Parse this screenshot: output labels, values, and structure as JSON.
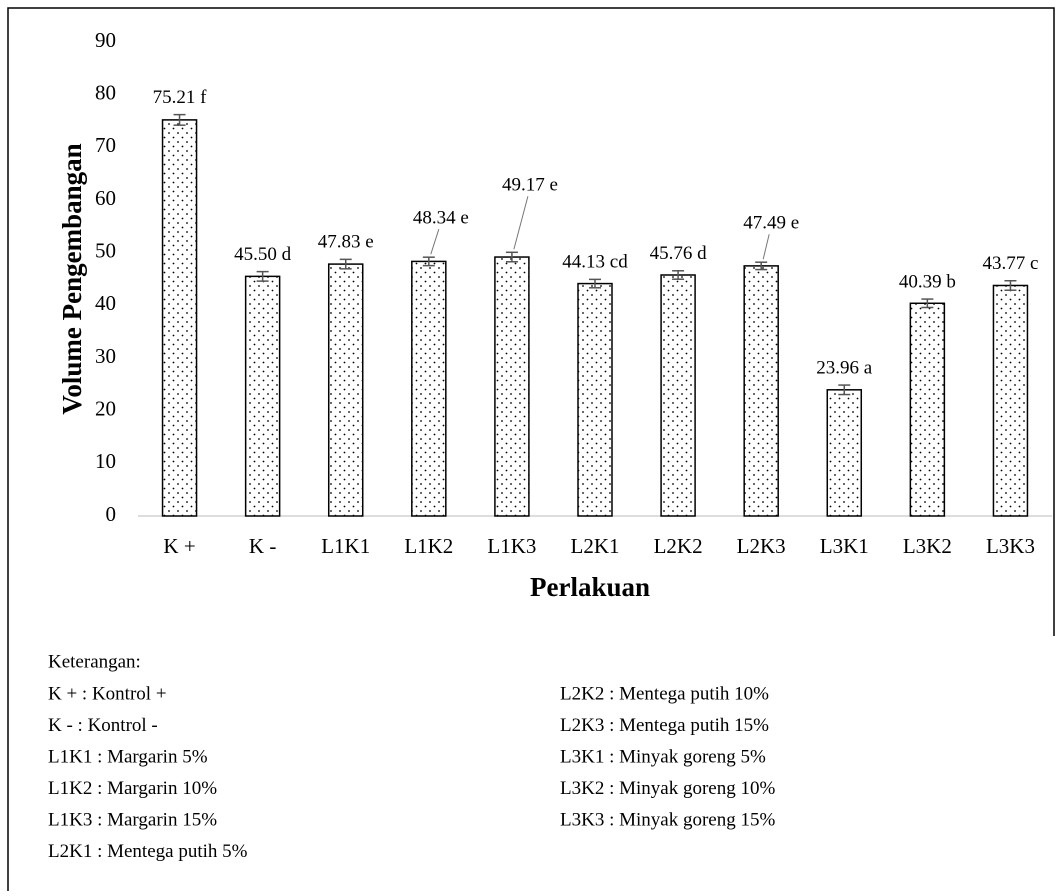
{
  "chart_data": {
    "type": "bar",
    "y_label": "Volume Pengembangan",
    "x_label": "Perlakuan",
    "categories": [
      "K +",
      "K -",
      "L1K1",
      "L1K2",
      "L1K3",
      "L2K1",
      "L2K2",
      "L2K3",
      "L3K1",
      "L3K2",
      "L3K3"
    ],
    "values": [
      75.21,
      45.5,
      47.83,
      48.34,
      49.17,
      44.13,
      45.76,
      47.49,
      23.96,
      40.39,
      43.77
    ],
    "value_labels": [
      "75.21 f",
      "45.50 d",
      "47.83 e",
      "48.34 e",
      "49.17 e",
      "44.13 cd",
      "45.76 d",
      "47.49 e",
      "23.96 a",
      "40.39 b",
      "43.77 c"
    ],
    "errors": [
      1.0,
      0.9,
      0.9,
      0.8,
      0.9,
      0.8,
      0.8,
      0.7,
      0.9,
      0.8,
      0.9
    ],
    "color": "#000000",
    "ylim": [
      0,
      90
    ],
    "yticks": [
      0,
      10,
      20,
      30,
      40,
      50,
      60,
      70,
      80,
      90
    ],
    "grid": false
  },
  "notes": {
    "title": "Keterangan:",
    "left": [
      "K + : Kontrol +",
      "K - : Kontrol -",
      "L1K1 : Margarin 5%",
      "L1K2 : Margarin 10%",
      "L1K3 : Margarin 15%",
      "L2K1 : Mentega putih 5%"
    ],
    "right": [
      "L2K2 : Mentega putih 10%",
      "L2K3 : Mentega putih 15%",
      "L3K1 : Minyak goreng 5%",
      "L3K2 : Minyak goreng 10%",
      "L3K3 : Minyak goreng 15%"
    ]
  }
}
